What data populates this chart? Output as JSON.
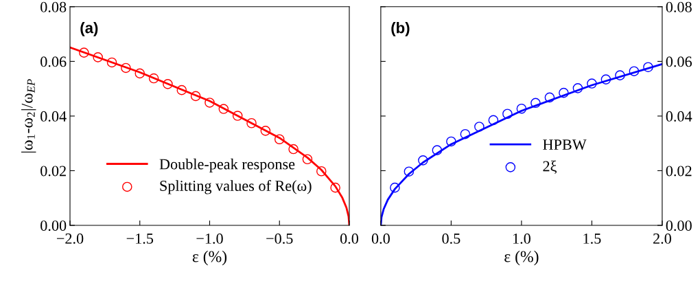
{
  "chart_data": [
    {
      "type": "line",
      "xlabel": "ε (%)",
      "ylabel": "|ω$_{1}$-ω$_{2}$|/ω$_{EP}$",
      "annotations": [
        "(a)"
      ],
      "xlim": [
        -2.0,
        0.0
      ],
      "xticks": [
        {
          "value": -2.0,
          "label": "−2.0"
        },
        {
          "value": -1.5,
          "label": "−1.5"
        },
        {
          "value": -1.0,
          "label": "−1.0"
        },
        {
          "value": -0.5,
          "label": "−0.5"
        },
        {
          "value": 0.0,
          "label": "0.0"
        }
      ],
      "ylim": [
        0.0,
        0.08
      ],
      "yticks": [
        {
          "value": 0,
          "label": "0.00"
        },
        {
          "value": 0.02,
          "label": "0.02"
        },
        {
          "value": 0.04,
          "label": "0.04"
        },
        {
          "value": 0.06,
          "label": "0.06"
        },
        {
          "value": 0.08,
          "label": "0.08"
        }
      ],
      "grid": false,
      "legend": "bottom",
      "series": [
        {
          "name": "Double-peak response",
          "color": "#ff0000",
          "marker": "none",
          "line_style": "solid",
          "x": [
            -2.0,
            -1.5,
            -1.0,
            -0.5,
            -0.3,
            -0.2,
            -0.1,
            -0.05,
            -0.02,
            -0.005,
            0.0
          ],
          "values": [
            0.0651,
            0.056,
            0.0455,
            0.032,
            0.0248,
            0.0203,
            0.0143,
            0.0101,
            0.0064,
            0.0032,
            0.0
          ]
        },
        {
          "name": "Splitting values of Re(ω)",
          "type": "scatter",
          "color": "#ff0000",
          "marker": "circle",
          "x": [
            -1.9,
            -1.8,
            -1.7,
            -1.6,
            -1.5,
            -1.4,
            -1.3,
            -1.2,
            -1.1,
            -1.0,
            -0.9,
            -0.8,
            -0.7,
            -0.6,
            -0.5,
            -0.4,
            -0.3,
            -0.2,
            -0.1
          ],
          "values": [
            0.0632,
            0.0615,
            0.0596,
            0.0576,
            0.0556,
            0.0538,
            0.0517,
            0.0495,
            0.0473,
            0.0449,
            0.0426,
            0.0401,
            0.0374,
            0.0346,
            0.0315,
            0.0279,
            0.0242,
            0.0198,
            0.0138
          ]
        }
      ]
    },
    {
      "type": "line",
      "xlabel": "ε (%)",
      "annotations": [
        "(b)"
      ],
      "xlim": [
        0.0,
        2.0
      ],
      "xticks": [
        {
          "value": 0.0,
          "label": "0.0"
        },
        {
          "value": 0.5,
          "label": "0.5"
        },
        {
          "value": 1.0,
          "label": "1.0"
        },
        {
          "value": 1.5,
          "label": "1.5"
        },
        {
          "value": 2.0,
          "label": "2.0"
        }
      ],
      "ylim": [
        0.0,
        0.08
      ],
      "yticks": [
        {
          "value": 0,
          "label": "0.00"
        },
        {
          "value": 0.02,
          "label": "0.02"
        },
        {
          "value": 0.04,
          "label": "0.04"
        },
        {
          "value": 0.06,
          "label": "0.06"
        },
        {
          "value": 0.08,
          "label": "0.08"
        }
      ],
      "grid": false,
      "legend": "bottom right",
      "series": [
        {
          "name": "HPBW",
          "color": "#0000ff",
          "marker": "none",
          "line_style": "solid",
          "x": [
            0.0,
            0.005,
            0.02,
            0.05,
            0.1,
            0.2,
            0.3,
            0.5,
            1.0,
            1.5,
            2.0
          ],
          "values": [
            0.0,
            0.003,
            0.0059,
            0.0094,
            0.0133,
            0.0188,
            0.023,
            0.0297,
            0.0419,
            0.0513,
            0.059
          ]
        },
        {
          "name": "2ξ",
          "type": "scatter",
          "color": "#0000ff",
          "marker": "circle",
          "x": [
            0.1,
            0.2,
            0.3,
            0.4,
            0.5,
            0.6,
            0.7,
            0.8,
            0.9,
            1.0,
            1.1,
            1.2,
            1.3,
            1.4,
            1.5,
            1.6,
            1.7,
            1.8,
            1.9
          ],
          "values": [
            0.0138,
            0.0197,
            0.0238,
            0.0275,
            0.0307,
            0.0334,
            0.0361,
            0.0385,
            0.0408,
            0.0427,
            0.0448,
            0.0468,
            0.0485,
            0.0502,
            0.0519,
            0.0534,
            0.0549,
            0.0564,
            0.0579
          ]
        }
      ]
    }
  ]
}
